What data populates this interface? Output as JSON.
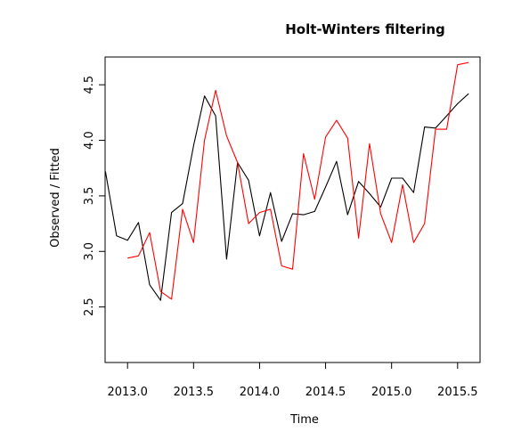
{
  "chart_data": {
    "type": "line",
    "title": "Holt-Winters filtering",
    "xlabel": "Time",
    "ylabel": "Observed / Fitted",
    "xlim": [
      2012.83,
      2015.67
    ],
    "ylim": [
      2.0,
      4.75
    ],
    "x_ticks": [
      2013.0,
      2013.5,
      2014.0,
      2014.5,
      2015.0,
      2015.5
    ],
    "x_tick_labels": [
      "2013.0",
      "2013.5",
      "2014.0",
      "2014.5",
      "2015.0",
      "2015.5"
    ],
    "y_ticks": [
      2.5,
      3.0,
      3.5,
      4.0,
      4.5
    ],
    "y_tick_labels": [
      "2.5",
      "3.0",
      "3.5",
      "4.0",
      "4.5"
    ],
    "grid": false,
    "series": [
      {
        "color": "#000000",
        "x": [
          2012.833,
          2012.917,
          2013.0,
          2013.083,
          2013.167,
          2013.25,
          2013.333,
          2013.417,
          2013.5,
          2013.583,
          2013.667,
          2013.75,
          2013.833,
          2013.917,
          2014.0,
          2014.083,
          2014.167,
          2014.25,
          2014.333,
          2014.417,
          2014.5,
          2014.583,
          2014.667,
          2014.75,
          2014.833,
          2014.917,
          2015.0,
          2015.083,
          2015.167,
          2015.25,
          2015.333,
          2015.417,
          2015.5,
          2015.583
        ],
        "values": [
          3.72,
          3.14,
          3.1,
          3.26,
          2.7,
          2.56,
          3.35,
          3.43,
          3.95,
          4.4,
          4.22,
          2.93,
          3.8,
          3.64,
          3.14,
          3.53,
          3.09,
          3.34,
          3.33,
          3.36,
          3.58,
          3.81,
          3.33,
          3.63,
          3.52,
          3.4,
          3.66,
          3.66,
          3.53,
          4.12,
          4.11,
          4.22,
          4.33,
          4.42
        ]
      },
      {
        "color": "#ff0000",
        "x": [
          2013.0,
          2013.083,
          2013.167,
          2013.25,
          2013.333,
          2013.417,
          2013.5,
          2013.583,
          2013.667,
          2013.75,
          2013.833,
          2013.917,
          2014.0,
          2014.083,
          2014.167,
          2014.25,
          2014.333,
          2014.417,
          2014.5,
          2014.583,
          2014.667,
          2014.75,
          2014.833,
          2014.917,
          2015.0,
          2015.083,
          2015.167,
          2015.25,
          2015.333,
          2015.417,
          2015.5,
          2015.583
        ],
        "values": [
          2.94,
          2.96,
          3.17,
          2.64,
          2.57,
          3.38,
          3.08,
          4.0,
          4.45,
          4.04,
          3.8,
          3.25,
          3.35,
          3.38,
          2.87,
          2.84,
          3.88,
          3.47,
          4.03,
          4.18,
          4.02,
          3.12,
          3.97,
          3.34,
          3.08,
          3.6,
          3.08,
          3.25,
          4.1,
          4.1,
          4.68,
          4.7
        ]
      }
    ]
  }
}
